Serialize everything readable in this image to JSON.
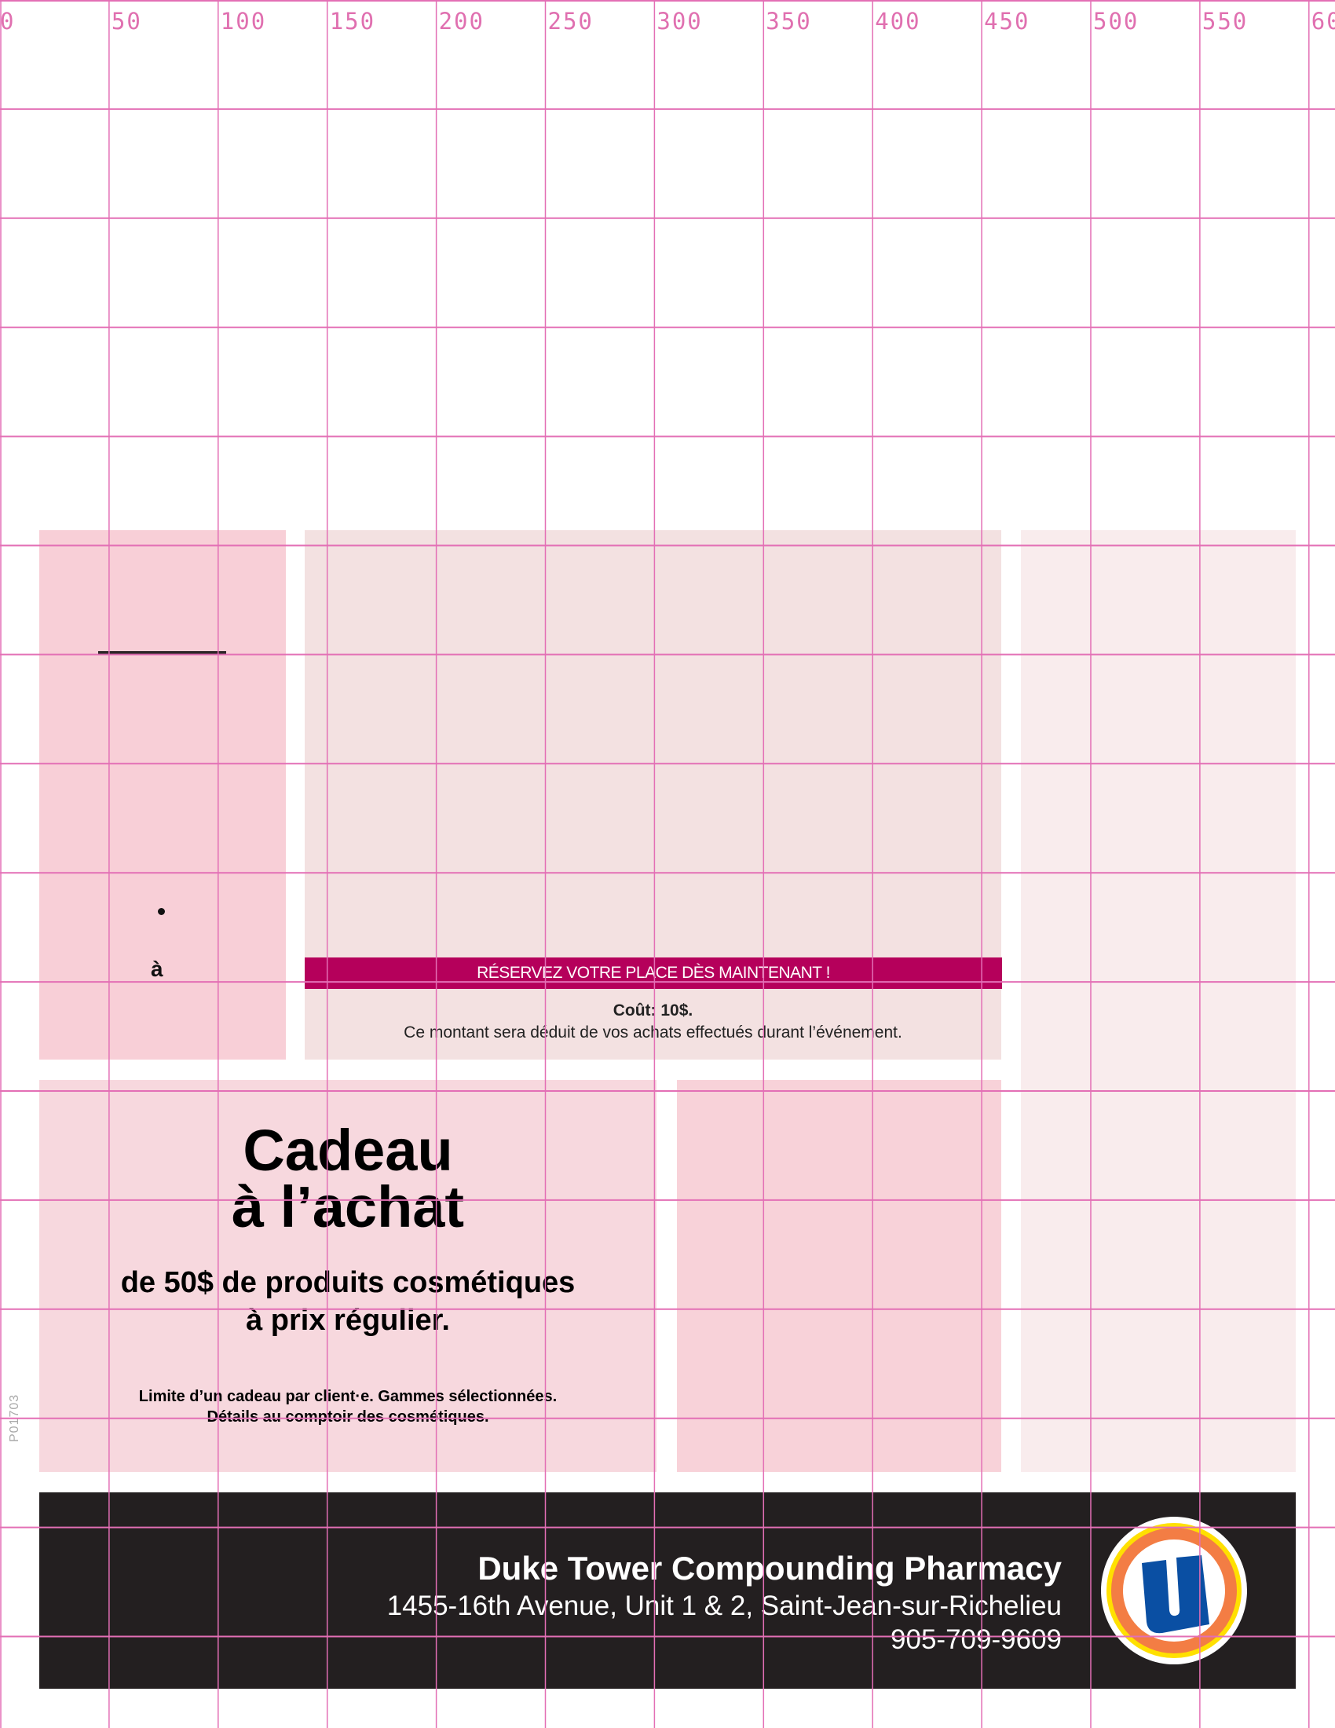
{
  "ruler": {
    "labels": [
      "0",
      "50",
      "100",
      "150",
      "200",
      "250",
      "300",
      "350",
      "400",
      "450",
      "500",
      "550",
      "60"
    ],
    "grid_color": "#e36fb5"
  },
  "event": {
    "agrave": "à",
    "banner": "RÉSERVEZ VOTRE PLACE DÈS MAINTENANT !",
    "cost": "Coût: 10$.",
    "cost_note": "Ce montant sera déduit de vos achats effectués durant l’événement.",
    "banner_color": "#b5005b"
  },
  "offer": {
    "title_line1": "Cadeau",
    "title_line2": "à l’achat",
    "sub_line1": "de 50$ de produits cosmétiques",
    "sub_line2": "à prix régulier.",
    "fine_line1": "Limite d’un cadeau par client·e. Gammes sélectionnées.",
    "fine_line2": "Détails au comptoir des cosmétiques.",
    "code": "P01703"
  },
  "footer": {
    "pharmacy_name": "Duke Tower Compounding Pharmacy",
    "address": "1455-16th Avenue, Unit 1 & 2, Saint-Jean-sur-Richelieu",
    "phone": "905-709-9609",
    "logo_letter": "U",
    "logo_icon": "uniprix-u-logo"
  }
}
